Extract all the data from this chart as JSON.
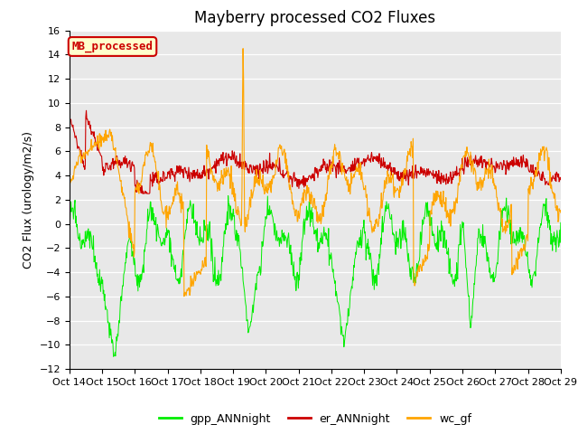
{
  "title": "Mayberry processed CO2 Fluxes",
  "ylabel": "CO2 Flux (urology/m2/s)",
  "xlabel": "",
  "ylim": [
    -12,
    16
  ],
  "yticks": [
    -12,
    -10,
    -8,
    -6,
    -4,
    -2,
    0,
    2,
    4,
    6,
    8,
    10,
    12,
    14,
    16
  ],
  "x_labels": [
    "Oct 14",
    "Oct 15",
    "Oct 16",
    "Oct 17",
    "Oct 18",
    "Oct 19",
    "Oct 20",
    "Oct 21",
    "Oct 22",
    "Oct 23",
    "Oct 24",
    "Oct 25",
    "Oct 26",
    "Oct 27",
    "Oct 28",
    "Oct 29"
  ],
  "gpp_color": "#00ee00",
  "er_color": "#cc0000",
  "wc_color": "#ffa500",
  "legend_items": [
    "gpp_ANNnight",
    "er_ANNnight",
    "wc_gf"
  ],
  "inset_label": "MB_processed",
  "inset_facecolor": "#ffffcc",
  "inset_edgecolor": "#cc0000",
  "background_color": "#e8e8e8",
  "title_fontsize": 12,
  "axis_label_fontsize": 9,
  "tick_fontsize": 8,
  "n_points": 960
}
